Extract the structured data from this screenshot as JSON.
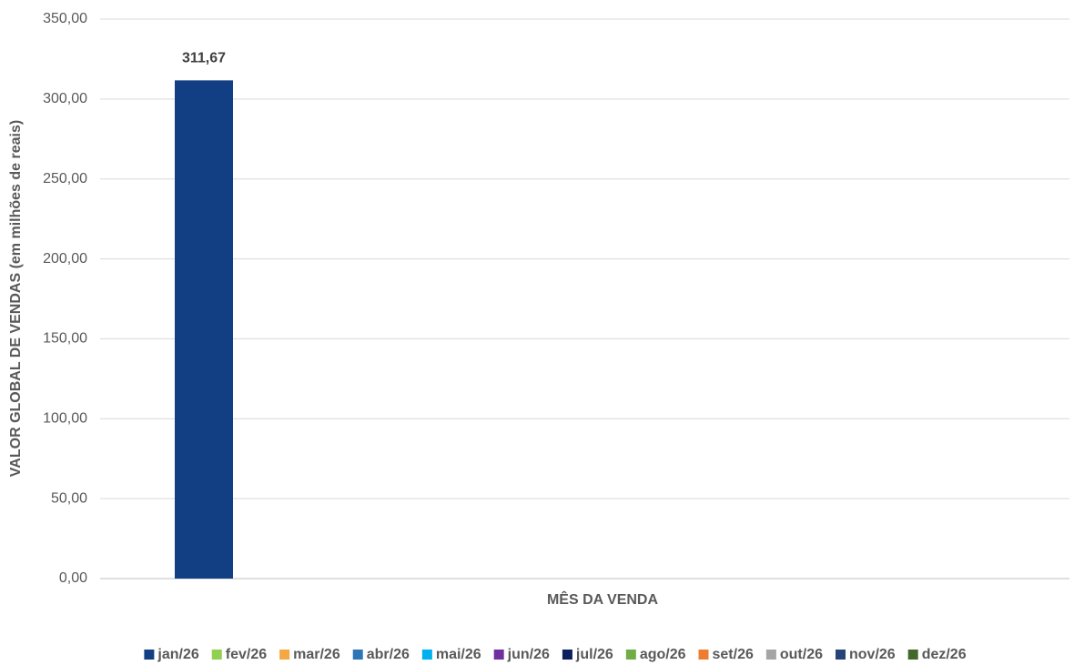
{
  "chart_data": {
    "type": "bar",
    "y_label": "VALOR GLOBAL DE VENDAS (em milhões de reais)",
    "x_label": "MÊS DA VENDA",
    "categories": [
      null
    ],
    "series": [
      {
        "name": "jan/26",
        "color": "#123f84",
        "values": [
          311.67
        ],
        "value_labels": [
          "311,67"
        ]
      },
      {
        "name": "fev/26",
        "color": "#92d050",
        "values": [
          null
        ]
      },
      {
        "name": "mar/26",
        "color": "#f4a742",
        "values": [
          null
        ]
      },
      {
        "name": "abr/26",
        "color": "#2e75b6",
        "values": [
          null
        ]
      },
      {
        "name": "mai/26",
        "color": "#00b0f0",
        "values": [
          null
        ]
      },
      {
        "name": "jun/26",
        "color": "#7030a0",
        "values": [
          null
        ]
      },
      {
        "name": "jul/26",
        "color": "#0a1f5c",
        "values": [
          null
        ]
      },
      {
        "name": "ago/26",
        "color": "#70ad47",
        "values": [
          null
        ]
      },
      {
        "name": "set/26",
        "color": "#ed7d31",
        "values": [
          null
        ]
      },
      {
        "name": "out/26",
        "color": "#a5a5a5",
        "values": [
          null
        ]
      },
      {
        "name": "nov/26",
        "color": "#264478",
        "values": [
          null
        ]
      },
      {
        "name": "dez/26",
        "color": "#43682b",
        "values": [
          null
        ]
      }
    ],
    "ylim": [
      0,
      350
    ],
    "yticks": [
      {
        "value": 0,
        "label": "0,00"
      },
      {
        "value": 50,
        "label": "50,00"
      },
      {
        "value": 100,
        "label": "100,00"
      },
      {
        "value": 150,
        "label": "150,00"
      },
      {
        "value": 200,
        "label": "200,00"
      },
      {
        "value": 250,
        "label": "250,00"
      },
      {
        "value": 300,
        "label": "300,00"
      },
      {
        "value": 350,
        "label": "350,00"
      }
    ],
    "grid": true,
    "legend": "bottom"
  }
}
